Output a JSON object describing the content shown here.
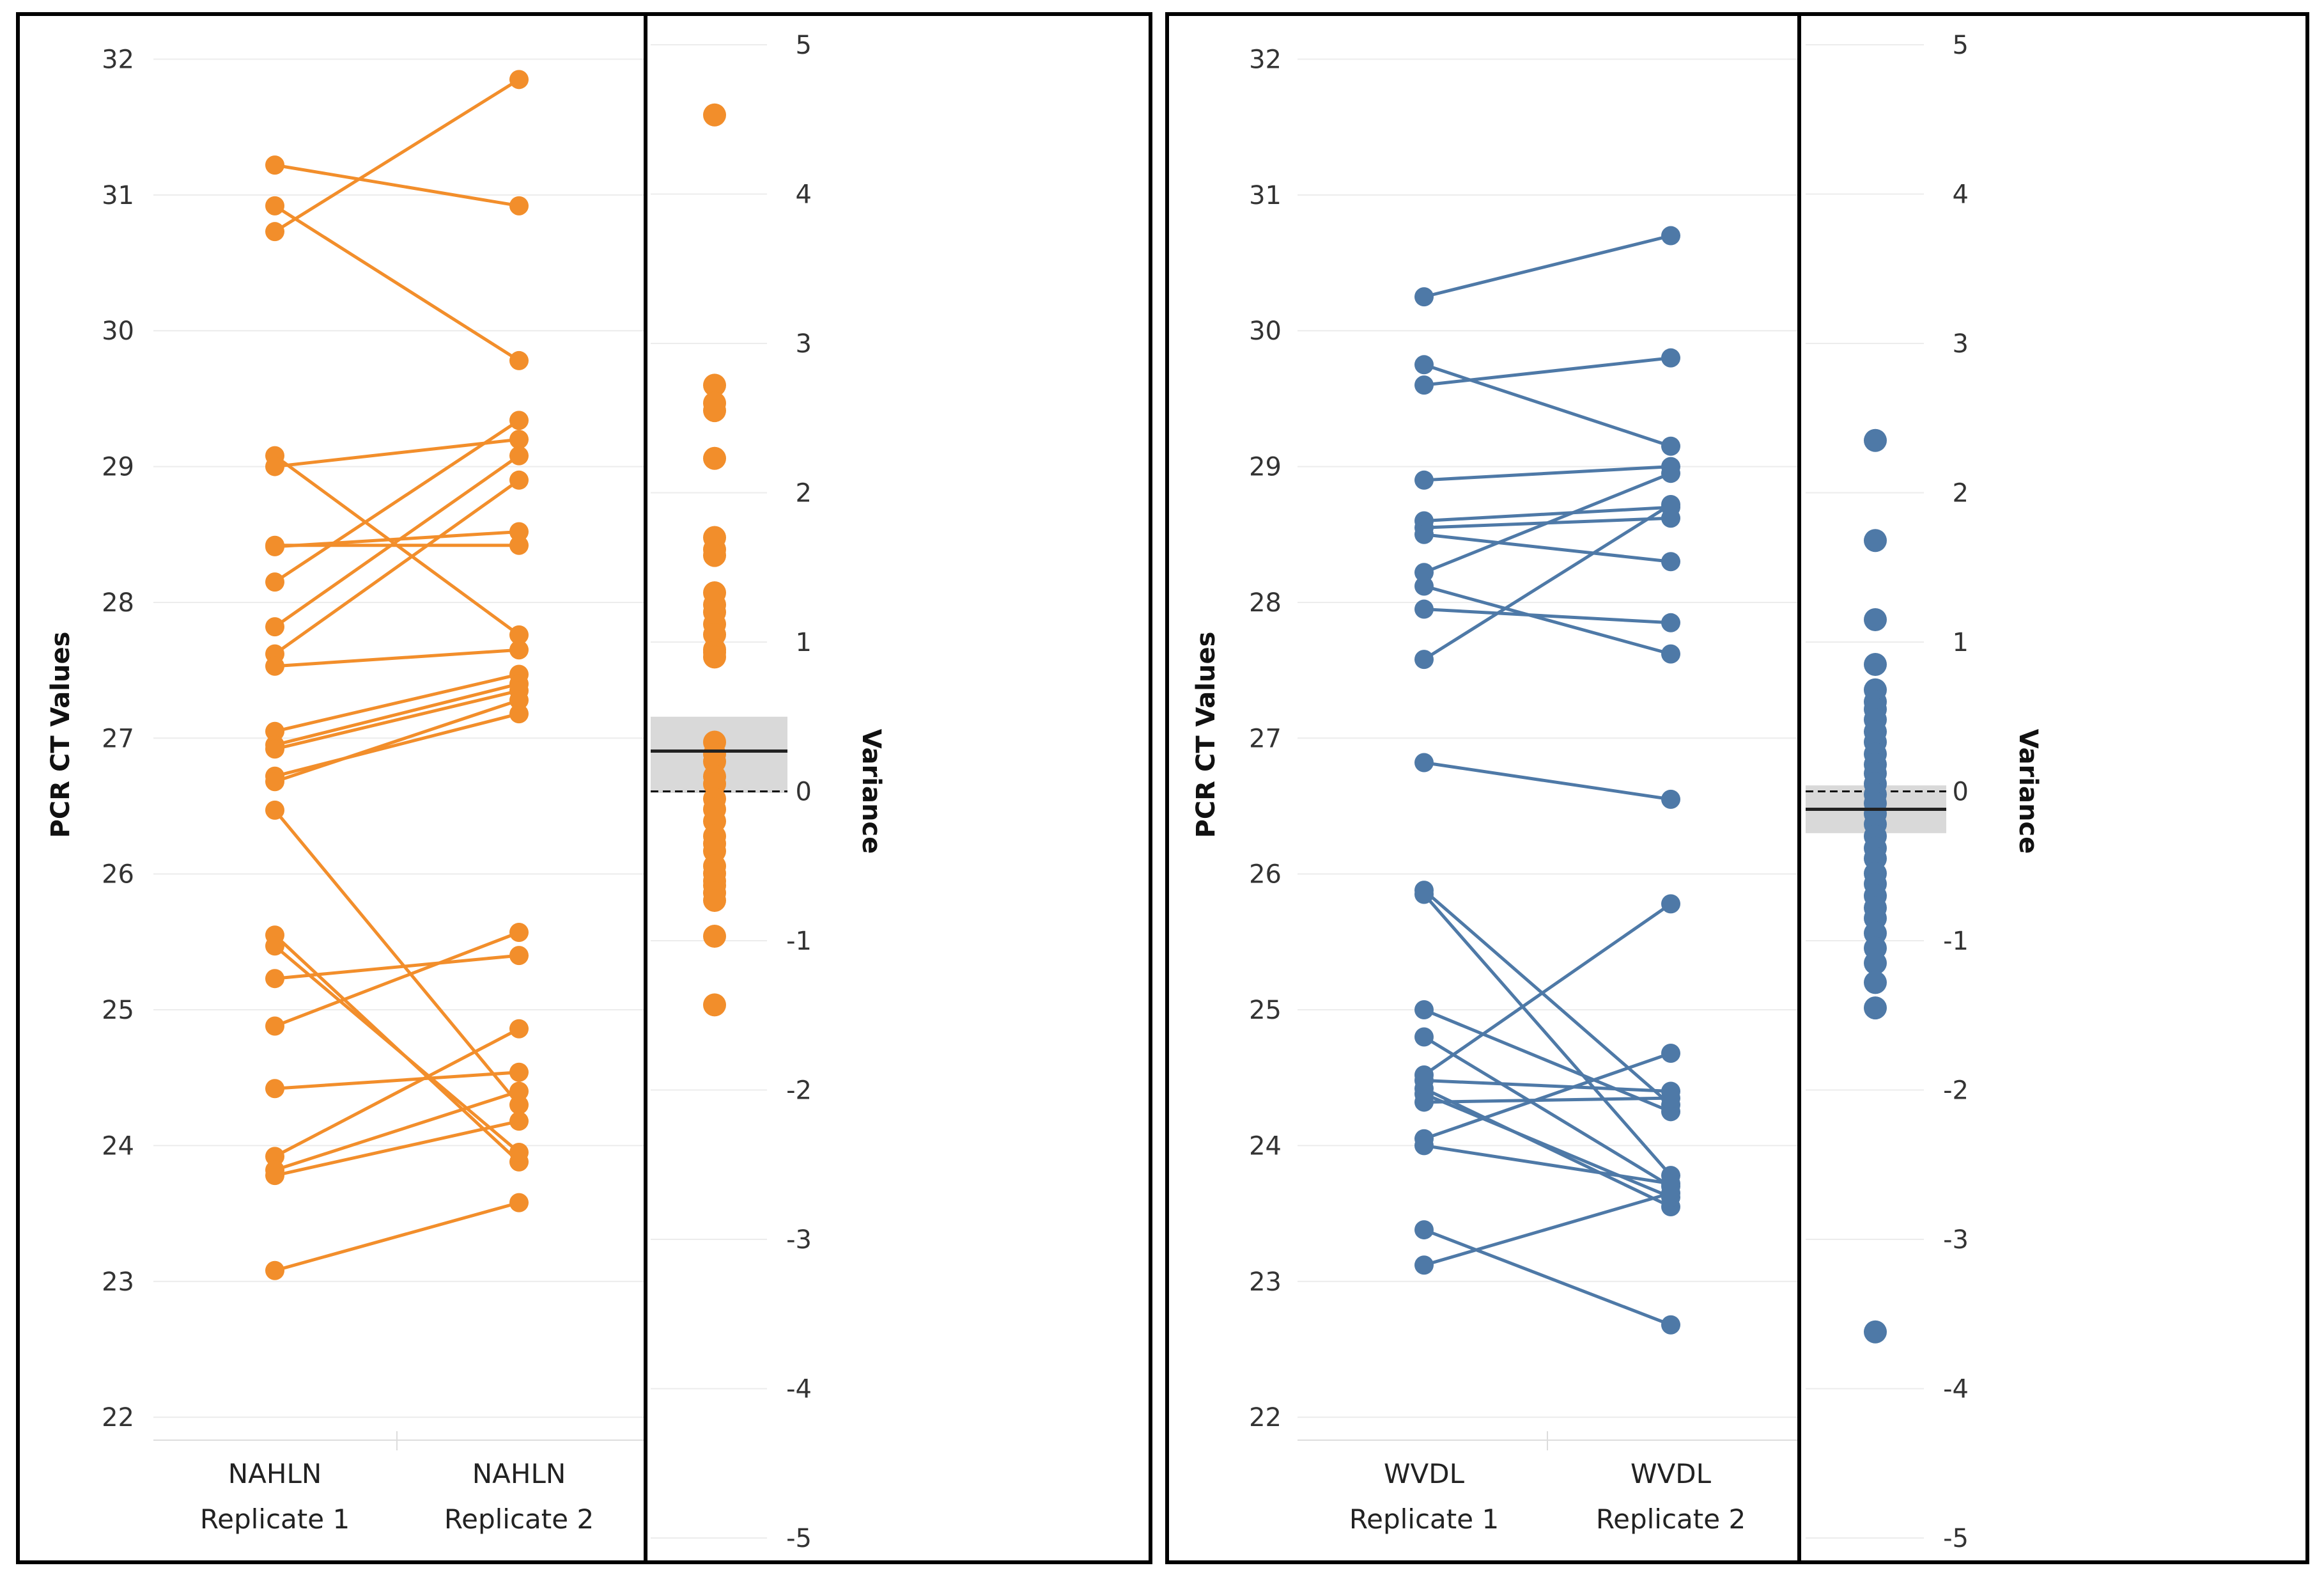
{
  "chart_data": [
    {
      "type": "slope-and-strip",
      "group": "NAHLN",
      "color": "#F28E2B",
      "left_axis": {
        "title": "PCR CT Values",
        "ylim": [
          21.85,
          32.2
        ],
        "ticks": [
          22,
          23,
          24,
          25,
          26,
          27,
          28,
          29,
          30,
          31,
          32
        ]
      },
      "categories": [
        {
          "line1": "NAHLN",
          "line2": "Replicate 1"
        },
        {
          "line1": "NAHLN",
          "line2": "Replicate 2"
        }
      ],
      "pairs": [
        [
          31.22,
          30.92
        ],
        [
          30.92,
          29.78
        ],
        [
          30.73,
          31.85
        ],
        [
          29.08,
          27.76
        ],
        [
          29.0,
          29.2
        ],
        [
          28.42,
          28.42
        ],
        [
          28.41,
          28.52
        ],
        [
          28.15,
          29.34
        ],
        [
          27.82,
          29.08
        ],
        [
          27.62,
          28.9
        ],
        [
          27.53,
          27.65
        ],
        [
          27.05,
          27.47
        ],
        [
          26.95,
          27.4
        ],
        [
          26.92,
          27.35
        ],
        [
          26.72,
          27.18
        ],
        [
          26.68,
          27.28
        ],
        [
          26.47,
          24.3
        ],
        [
          25.55,
          23.88
        ],
        [
          25.47,
          23.95
        ],
        [
          25.23,
          25.4
        ],
        [
          24.88,
          25.57
        ],
        [
          24.42,
          24.54
        ],
        [
          23.92,
          24.86
        ],
        [
          23.82,
          24.4
        ],
        [
          23.78,
          24.18
        ],
        [
          23.08,
          23.58
        ]
      ],
      "right_axis": {
        "title": "Variance",
        "ylim": [
          -5,
          5
        ],
        "ticks": [
          5,
          4,
          3,
          2,
          1,
          0,
          -1,
          -2,
          -3,
          -4,
          -5
        ]
      },
      "variance_points": [
        4.53,
        2.72,
        2.6,
        2.55,
        2.23,
        1.7,
        1.62,
        1.58,
        1.33,
        1.25,
        1.2,
        1.12,
        1.05,
        0.95,
        0.93,
        0.9,
        0.33,
        0.25,
        0.2,
        0.1,
        0.05,
        -0.05,
        -0.12,
        -0.2,
        -0.3,
        -0.35,
        -0.4,
        -0.5,
        -0.55,
        -0.6,
        -0.63,
        -0.68,
        -0.73,
        -0.97,
        -1.43
      ],
      "mean_line": 0.27,
      "ci_band": [
        -0.01,
        0.5
      ],
      "zero_reference": 0
    },
    {
      "type": "slope-and-strip",
      "group": "WVDL",
      "color": "#4E79A7",
      "left_axis": {
        "title": "PCR CT Values",
        "ylim": [
          21.85,
          32.2
        ],
        "ticks": [
          22,
          23,
          24,
          25,
          26,
          27,
          28,
          29,
          30,
          31,
          32
        ]
      },
      "categories": [
        {
          "line1": "WVDL",
          "line2": "Replicate 1"
        },
        {
          "line1": "WVDL",
          "line2": "Replicate 2"
        }
      ],
      "pairs": [
        [
          30.25,
          30.7
        ],
        [
          29.75,
          29.15
        ],
        [
          29.6,
          29.8
        ],
        [
          28.9,
          29.0
        ],
        [
          28.6,
          28.7
        ],
        [
          28.55,
          28.62
        ],
        [
          28.5,
          28.3
        ],
        [
          28.22,
          28.95
        ],
        [
          28.12,
          27.62
        ],
        [
          27.95,
          27.85
        ],
        [
          27.58,
          28.72
        ],
        [
          26.82,
          26.55
        ],
        [
          25.88,
          24.3
        ],
        [
          25.85,
          23.78
        ],
        [
          25.0,
          24.25
        ],
        [
          24.8,
          23.7
        ],
        [
          24.52,
          25.78
        ],
        [
          24.48,
          24.4
        ],
        [
          24.42,
          23.55
        ],
        [
          24.38,
          23.62
        ],
        [
          24.32,
          24.35
        ],
        [
          24.05,
          24.68
        ],
        [
          24.0,
          23.72
        ],
        [
          23.38,
          22.68
        ],
        [
          23.12,
          23.65
        ]
      ],
      "right_axis": {
        "title": "Variance",
        "ylim": [
          -5,
          5
        ],
        "ticks": [
          5,
          4,
          3,
          2,
          1,
          0,
          -1,
          -2,
          -3,
          -4,
          -5
        ]
      },
      "variance_points": [
        2.35,
        1.68,
        1.15,
        0.85,
        0.68,
        0.6,
        0.55,
        0.48,
        0.4,
        0.33,
        0.25,
        0.18,
        0.12,
        0.05,
        -0.02,
        -0.08,
        -0.15,
        -0.22,
        -0.3,
        -0.38,
        -0.45,
        -0.55,
        -0.62,
        -0.7,
        -0.78,
        -0.85,
        -0.95,
        -1.05,
        -1.15,
        -1.28,
        -1.45,
        -3.62
      ],
      "mean_line": -0.12,
      "ci_band": [
        -0.28,
        0.04
      ],
      "zero_reference": 0
    }
  ]
}
